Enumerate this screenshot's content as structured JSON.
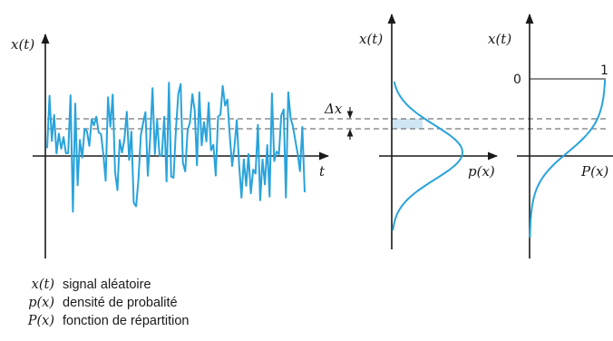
{
  "panels": {
    "signal": {
      "ylabel": "x(t)",
      "xlabel": "t"
    },
    "density": {
      "ylabel": "x(t)",
      "xlabel": "p(x)"
    },
    "distribution": {
      "ylabel": "x(t)",
      "xlabel": "P(x)",
      "tick_zero": "0",
      "tick_one": "1"
    }
  },
  "delta_label": "Δx",
  "legend": [
    {
      "symbol": "x(t)",
      "text": "signal aléatoire"
    },
    {
      "symbol": "p(x)",
      "text": "densité de probalité"
    },
    {
      "symbol": "P(x)",
      "text": "fonction de répartition"
    }
  ],
  "colors": {
    "curve": "#29a3dc",
    "axis": "#1a1a1a",
    "band": "#cfe6f4",
    "dashes": "#555555"
  }
}
